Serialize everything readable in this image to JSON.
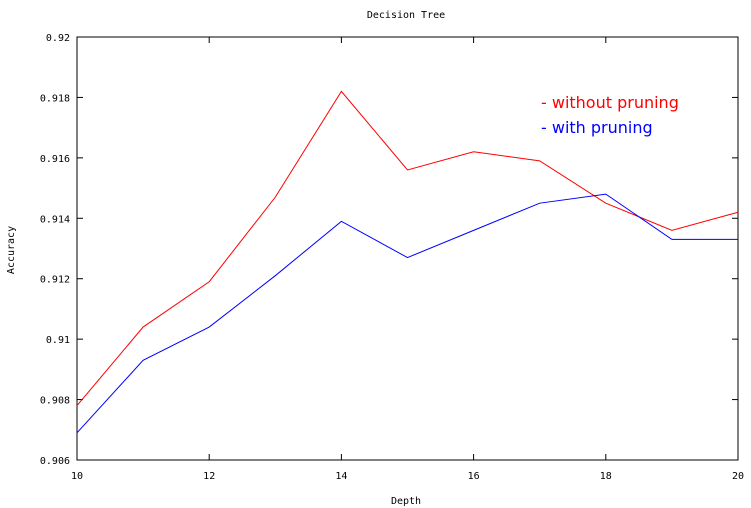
{
  "chart_data": {
    "type": "line",
    "title": "Decision Tree",
    "xlabel": "Depth",
    "ylabel": "Accuracy",
    "xlim": [
      10,
      20
    ],
    "ylim": [
      0.906,
      0.92
    ],
    "xticks": [
      10,
      12,
      14,
      16,
      18,
      20
    ],
    "yticks": [
      0.906,
      0.908,
      0.91,
      0.912,
      0.914,
      0.916,
      0.918,
      0.92
    ],
    "xtick_labels": [
      "10",
      "12",
      "14",
      "16",
      "18",
      "20"
    ],
    "ytick_labels": [
      "0.906",
      "0.908",
      "0.91",
      "0.912",
      "0.914",
      "0.916",
      "0.918",
      "0.92"
    ],
    "grid": false,
    "legend_position": "top-right",
    "x": [
      10,
      11,
      12,
      13,
      14,
      15,
      16,
      17,
      18,
      19,
      20
    ],
    "series": [
      {
        "name": "- without pruning",
        "color": "#ff0000",
        "values": [
          0.9078,
          0.9104,
          0.9119,
          0.9147,
          0.9182,
          0.9156,
          0.9162,
          0.9159,
          0.9145,
          0.9136,
          0.9142
        ]
      },
      {
        "name": "- with pruning",
        "color": "#0000ff",
        "values": [
          0.9069,
          0.9093,
          0.9104,
          0.9121,
          0.9139,
          0.9127,
          0.9136,
          0.9145,
          0.9148,
          0.9133,
          0.9133
        ]
      }
    ]
  }
}
